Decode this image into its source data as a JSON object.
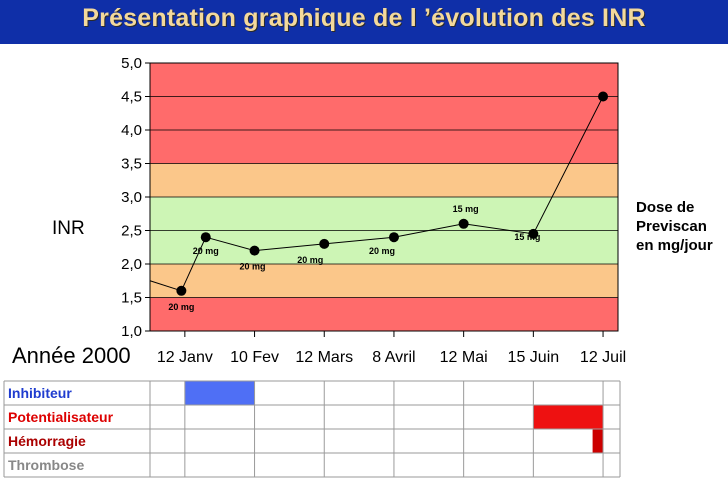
{
  "title": "Présentation graphique de l ’évolution des INR",
  "chart_data": {
    "type": "line",
    "ylabel": "INR",
    "x_axis_title": "Année 2000",
    "yticks": [
      "1,0",
      "1,5",
      "2,0",
      "2,5",
      "3,0",
      "3,5",
      "4,0",
      "4,5",
      "5,0"
    ],
    "ylim": [
      1.0,
      5.0
    ],
    "xticks": [
      "12 Janv",
      "10 Fev",
      "12 Mars",
      "8 Avril",
      "12 Mai",
      "15 Juin",
      "12 Juil"
    ],
    "zones": [
      {
        "from": 1.0,
        "to": 1.5,
        "color": "#ff6b6b"
      },
      {
        "from": 1.5,
        "to": 2.0,
        "color": "#fbc78a"
      },
      {
        "from": 2.0,
        "to": 3.0,
        "color": "#cdf5b5"
      },
      {
        "from": 3.0,
        "to": 3.5,
        "color": "#fbc78a"
      },
      {
        "from": 3.5,
        "to": 5.0,
        "color": "#ff6b6b"
      }
    ],
    "series": [
      {
        "points": [
          {
            "x": 0.45,
            "y": 1.6,
            "dose": "20 mg"
          },
          {
            "x": 0.8,
            "y": 2.4,
            "dose": "20 mg"
          },
          {
            "x": 1.5,
            "y": 2.2,
            "dose": "20 mg"
          },
          {
            "x": 2.5,
            "y": 2.3,
            "dose": "20 mg"
          },
          {
            "x": 3.5,
            "y": 2.4,
            "dose": "20 mg"
          },
          {
            "x": 4.5,
            "y": 2.6,
            "dose": "15 mg"
          },
          {
            "x": 5.5,
            "y": 2.45,
            "dose": "15 mg"
          },
          {
            "x": 6.5,
            "y": 4.5,
            "dose": ""
          }
        ],
        "color": "#000000"
      }
    ],
    "lead_in_value": 1.75,
    "grid": true,
    "dose_legend": "Dose de\nPreviscan\nen mg/jour",
    "event_rows": [
      {
        "label": "Inhibiteur",
        "color": "#1f3ccf",
        "bar_color": "#4f6ff5",
        "spans": [
          [
            0.5,
            1.5
          ]
        ]
      },
      {
        "label": "Potentialisateur",
        "color": "#dd0000",
        "bar_color": "#ee1111",
        "spans": [
          [
            5.5,
            6.5
          ]
        ]
      },
      {
        "label": "Hémorragie",
        "color": "#aa0000",
        "bar_color": "#cc0000",
        "spans": [
          [
            6.35,
            6.5
          ]
        ]
      },
      {
        "label": "Thrombose",
        "color": "#888888",
        "bar_color": "#888888",
        "spans": []
      }
    ]
  }
}
